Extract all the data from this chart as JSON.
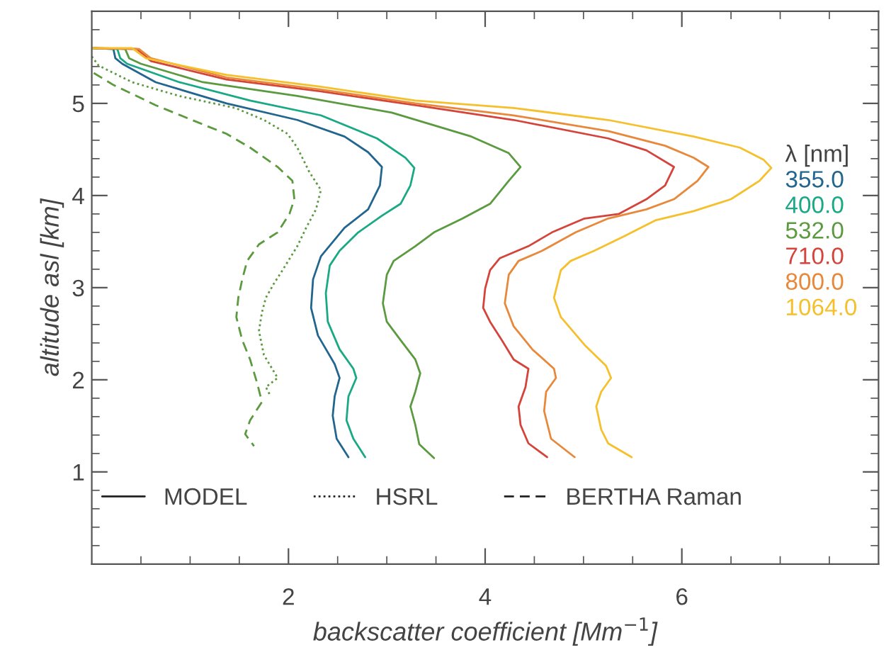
{
  "chart_data": {
    "type": "line",
    "xlabel": "backscatter coefficient [Mm$^{−1}$]",
    "ylabel": "altitude asl [km]",
    "legend_title": "λ [nm]",
    "legend": "right",
    "grid": false,
    "xlim": [
      0,
      8
    ],
    "ylim": [
      0,
      6
    ],
    "xticks": [
      {
        "value": 0.5,
        "label": null
      },
      {
        "value": 1,
        "label": null
      },
      {
        "value": 1.5,
        "label": null
      },
      2,
      {
        "value": 2.5,
        "label": null
      },
      {
        "value": 3,
        "label": null
      },
      {
        "value": 3.5,
        "label": null
      },
      4,
      {
        "value": 4.5,
        "label": null
      },
      {
        "value": 5,
        "label": null
      },
      {
        "value": 5.5,
        "label": null
      },
      6,
      {
        "value": 6.5,
        "label": null
      },
      {
        "value": 7,
        "label": null
      },
      {
        "value": 7.5,
        "label": null
      }
    ],
    "yticks": [
      {
        "value": 0.2,
        "label": null
      },
      {
        "value": 0.4,
        "label": null
      },
      {
        "value": 0.6,
        "label": null
      },
      {
        "value": 0.8,
        "label": null
      },
      1,
      {
        "value": 1.2,
        "label": null
      },
      {
        "value": 1.4,
        "label": null
      },
      {
        "value": 1.6,
        "label": null
      },
      {
        "value": 1.8,
        "label": null
      },
      2,
      {
        "value": 2.2,
        "label": null
      },
      {
        "value": 2.4,
        "label": null
      },
      {
        "value": 2.6,
        "label": null
      },
      {
        "value": 2.8,
        "label": null
      },
      3,
      {
        "value": 3.2,
        "label": null
      },
      {
        "value": 3.4,
        "label": null
      },
      {
        "value": 3.6,
        "label": null
      },
      {
        "value": 3.8,
        "label": null
      },
      4,
      {
        "value": 4.2,
        "label": null
      },
      {
        "value": 4.4,
        "label": null
      },
      {
        "value": 4.6,
        "label": null
      },
      {
        "value": 4.8,
        "label": null
      },
      5,
      {
        "value": 5.2,
        "label": null
      },
      {
        "value": 5.4,
        "label": null
      },
      {
        "value": 5.6,
        "label": null
      },
      {
        "value": 5.8,
        "label": null
      }
    ],
    "annotations": [
      "MODEL",
      "HSRL",
      "BERTHA Raman"
    ],
    "series": [
      {
        "name": "355.0",
        "color": "#22668f",
        "line_style": "solid",
        "x": [
          0,
          0.22,
          0.24,
          0.31,
          0.65,
          1.37,
          2.09,
          2.57,
          2.81,
          2.95,
          2.93,
          2.81,
          2.57,
          2.33,
          2.25,
          2.23,
          2.3,
          2.47,
          2.52,
          2.47,
          2.45,
          2.49,
          2.61
        ],
        "values": [
          5.6,
          5.59,
          5.49,
          5.43,
          5.23,
          5.0,
          4.82,
          4.64,
          4.47,
          4.31,
          4.11,
          3.85,
          3.65,
          3.34,
          3.09,
          2.78,
          2.48,
          2.17,
          2.02,
          1.82,
          1.61,
          1.36,
          1.16
        ]
      },
      {
        "name": "400.0",
        "color": "#1aa985",
        "line_style": "solid",
        "x": [
          0,
          0.26,
          0.29,
          0.36,
          0.89,
          1.61,
          2.33,
          2.9,
          3.19,
          3.28,
          3.24,
          3.14,
          2.95,
          2.71,
          2.52,
          2.42,
          2.38,
          2.4,
          2.52,
          2.66,
          2.69,
          2.61,
          2.59,
          2.66,
          2.78
        ],
        "values": [
          5.6,
          5.59,
          5.49,
          5.43,
          5.23,
          5.03,
          4.87,
          4.62,
          4.41,
          4.3,
          4.11,
          3.91,
          3.78,
          3.6,
          3.4,
          3.24,
          2.94,
          2.63,
          2.33,
          2.12,
          2.02,
          1.82,
          1.56,
          1.36,
          1.16
        ]
      },
      {
        "name": "532.0",
        "color": "#5b9a3f",
        "line_style": "solid",
        "x": [
          0,
          0.34,
          0.38,
          0.5,
          1.13,
          2.09,
          3.05,
          3.86,
          4.24,
          4.36,
          4.24,
          4.05,
          3.77,
          3.48,
          3.29,
          3.07,
          3.0,
          2.96,
          3.0,
          3.14,
          3.29,
          3.34,
          3.29,
          3.24,
          3.29,
          3.33,
          3.48
        ],
        "values": [
          5.6,
          5.59,
          5.49,
          5.43,
          5.23,
          5.08,
          4.9,
          4.64,
          4.46,
          4.31,
          4.16,
          3.91,
          3.75,
          3.6,
          3.45,
          3.29,
          3.14,
          2.83,
          2.63,
          2.43,
          2.22,
          2.07,
          1.87,
          1.71,
          1.51,
          1.3,
          1.15
        ]
      },
      {
        "name": "710.0",
        "color": "#d4443a",
        "line_style": "solid",
        "x": [
          0,
          0.46,
          0.6,
          1.37,
          2.33,
          3.29,
          4.29,
          5.25,
          5.64,
          5.92,
          5.83,
          5.64,
          5.36,
          5.01,
          4.68,
          4.44,
          4.15,
          4.05,
          4.0,
          3.98,
          4.05,
          4.17,
          4.29,
          4.44,
          4.41,
          4.34,
          4.36,
          4.44,
          4.63
        ],
        "values": [
          5.6,
          5.59,
          5.46,
          5.26,
          5.13,
          4.98,
          4.82,
          4.62,
          4.49,
          4.31,
          4.11,
          3.96,
          3.8,
          3.75,
          3.6,
          3.45,
          3.32,
          3.19,
          2.99,
          2.78,
          2.63,
          2.43,
          2.22,
          2.12,
          1.92,
          1.71,
          1.51,
          1.31,
          1.16
        ]
      },
      {
        "name": "800.0",
        "color": "#e8883a",
        "line_style": "solid",
        "x": [
          0,
          0.48,
          0.6,
          1.37,
          2.33,
          3.29,
          4.29,
          5.25,
          5.83,
          6.12,
          6.27,
          6.16,
          5.92,
          5.64,
          5.25,
          4.92,
          4.58,
          4.34,
          4.24,
          4.2,
          4.29,
          4.48,
          4.7,
          4.72,
          4.62,
          4.6,
          4.67,
          4.91
        ],
        "values": [
          5.6,
          5.59,
          5.49,
          5.28,
          5.15,
          5.0,
          4.87,
          4.7,
          4.54,
          4.41,
          4.31,
          4.16,
          3.96,
          3.85,
          3.75,
          3.6,
          3.4,
          3.29,
          3.14,
          2.83,
          2.58,
          2.33,
          2.12,
          2.02,
          1.87,
          1.66,
          1.36,
          1.16
        ]
      },
      {
        "name": "1064.0",
        "color": "#f5c02c",
        "line_style": "solid",
        "x": [
          0,
          0.41,
          0.55,
          1.37,
          2.33,
          3.29,
          4.29,
          5.25,
          6.12,
          6.59,
          6.83,
          6.91,
          6.79,
          6.5,
          6.12,
          5.73,
          5.4,
          5.11,
          4.87,
          4.77,
          4.7,
          4.77,
          5.01,
          5.23,
          5.28,
          5.18,
          5.13,
          5.18,
          5.25,
          5.49
        ],
        "values": [
          5.6,
          5.6,
          5.49,
          5.31,
          5.18,
          5.03,
          4.95,
          4.82,
          4.64,
          4.52,
          4.39,
          4.3,
          4.16,
          3.96,
          3.83,
          3.73,
          3.55,
          3.4,
          3.29,
          3.19,
          2.89,
          2.68,
          2.38,
          2.15,
          2.02,
          1.87,
          1.71,
          1.46,
          1.31,
          1.16
        ]
      },
      {
        "color": "#5b9a3f",
        "line_style": "dotted",
        "x": [
          0,
          0.07,
          0.41,
          0.89,
          1.46,
          1.75,
          1.99,
          2.09,
          2.21,
          2.33,
          2.28,
          2.18,
          2.09,
          1.94,
          1.85,
          1.77,
          1.73,
          1.7,
          1.75,
          1.89,
          1.77,
          1.82
        ],
        "values": [
          5.51,
          5.41,
          5.23,
          5.08,
          4.95,
          4.82,
          4.67,
          4.52,
          4.26,
          4.06,
          3.85,
          3.65,
          3.45,
          3.19,
          3.04,
          2.89,
          2.73,
          2.53,
          2.27,
          2.02,
          1.92,
          1.82
        ]
      },
      {
        "color": "#5b9a3f",
        "line_style": "dashed",
        "x": [
          0.02,
          0.22,
          0.65,
          1.18,
          1.37,
          1.61,
          1.89,
          2.04,
          2.06,
          2.01,
          1.89,
          1.7,
          1.58,
          1.53,
          1.49,
          1.47,
          1.53,
          1.61,
          1.68,
          1.73,
          1.61,
          1.56,
          1.65
        ],
        "values": [
          5.33,
          5.2,
          4.98,
          4.75,
          4.67,
          4.52,
          4.31,
          4.16,
          3.96,
          3.8,
          3.6,
          3.47,
          3.29,
          3.09,
          2.89,
          2.68,
          2.43,
          2.22,
          1.97,
          1.76,
          1.56,
          1.41,
          1.28
        ]
      }
    ]
  }
}
